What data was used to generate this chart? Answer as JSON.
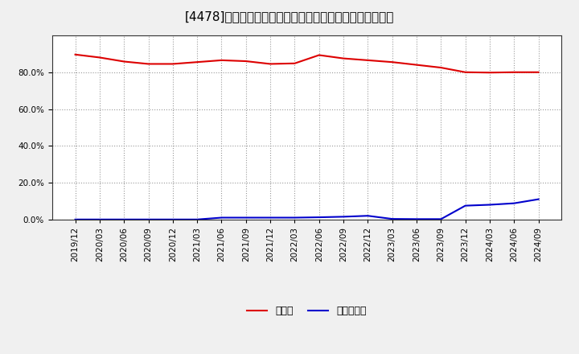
{
  "title": "[4478]　現道金、有利子負債の総資産に対する比率の推移",
  "background_color": "#f0f0f0",
  "plot_bg_color": "#ffffff",
  "grid_color": "#999999",
  "x_labels": [
    "2019/12",
    "2020/03",
    "2020/06",
    "2020/09",
    "2020/12",
    "2021/03",
    "2021/06",
    "2021/09",
    "2021/12",
    "2022/03",
    "2022/06",
    "2022/09",
    "2022/12",
    "2023/03",
    "2023/06",
    "2023/09",
    "2023/12",
    "2024/03",
    "2024/06",
    "2024/09"
  ],
  "cash_values": [
    0.896,
    0.88,
    0.858,
    0.845,
    0.845,
    0.855,
    0.865,
    0.86,
    0.845,
    0.848,
    0.893,
    0.875,
    0.865,
    0.855,
    0.84,
    0.825,
    0.8,
    0.798,
    0.8,
    0.8
  ],
  "debt_values": [
    0.0,
    0.0,
    0.0,
    0.0,
    0.0,
    0.0,
    0.01,
    0.01,
    0.01,
    0.01,
    0.012,
    0.015,
    0.02,
    0.003,
    0.002,
    0.002,
    0.075,
    0.08,
    0.088,
    0.11
  ],
  "cash_color": "#dd0000",
  "debt_color": "#0000cc",
  "legend_cash": "現道金",
  "legend_debt": "有利子負債",
  "ylim": [
    0.0,
    1.0
  ],
  "yticks": [
    0.0,
    0.2,
    0.4,
    0.6,
    0.8
  ],
  "title_fontsize": 11,
  "legend_fontsize": 9,
  "tick_fontsize": 7.5
}
